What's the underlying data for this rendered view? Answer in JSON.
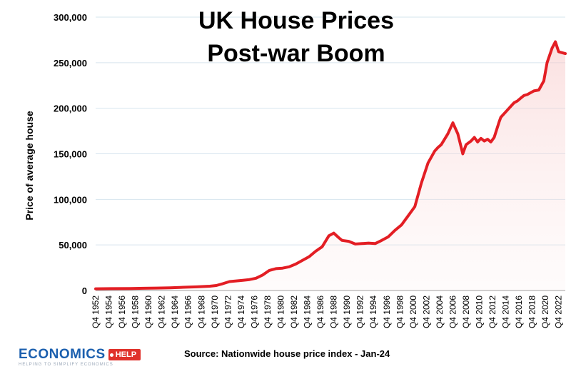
{
  "chart_data": {
    "type": "line",
    "title_line1": "UK House Prices",
    "title_line2": "Post-war Boom",
    "ylabel": "Price of average house",
    "ylim": [
      0,
      300000
    ],
    "yticks": [
      "0",
      "50,000",
      "100,000",
      "150,000",
      "200,000",
      "250,000",
      "300,000"
    ],
    "xticks": [
      "Q4 1952",
      "Q4 1954",
      "Q4 1956",
      "Q4 1958",
      "Q4 1960",
      "Q4 1962",
      "Q4 1964",
      "Q4 1966",
      "Q4 1968",
      "Q4 1970",
      "Q4 1972",
      "Q4 1974",
      "Q4 1976",
      "Q4 1978",
      "Q4 1980",
      "Q4 1982",
      "Q4 1984",
      "Q4 1986",
      "Q4 1988",
      "Q4 1990",
      "Q4 1992",
      "Q4 1994",
      "Q4 1996",
      "Q4 1998",
      "Q4 2000",
      "Q4 2002",
      "Q4 2004",
      "Q4 2006",
      "Q4 2008",
      "Q4 2010",
      "Q4 2012",
      "Q4 2014",
      "Q4 2016",
      "Q4 2018",
      "Q4 2020",
      "Q4 2022"
    ],
    "series": [
      {
        "name": "",
        "color": "#e31e24",
        "x": [
          1952.75,
          1955,
          1958,
          1960,
          1962,
          1964,
          1966,
          1968,
          1970,
          1971,
          1972,
          1973,
          1974,
          1975,
          1976,
          1977,
          1978,
          1979,
          1980,
          1981,
          1982,
          1983,
          1984,
          1985,
          1986,
          1987,
          1988,
          1988.75,
          1989.5,
          1990,
          1991,
          1992,
          1993,
          1994,
          1995,
          1996,
          1997,
          1998,
          1999,
          2000,
          2001,
          2002,
          2003,
          2004,
          2004.5,
          2005,
          2006,
          2006.75,
          2007.5,
          2008.25,
          2008.75,
          2009.5,
          2010,
          2010.5,
          2011,
          2011.5,
          2012,
          2012.5,
          2013,
          2013.75,
          2014,
          2015,
          2016,
          2016.5,
          2017,
          2017.5,
          2018,
          2019,
          2019.75,
          2020.5,
          2021,
          2021.75,
          2022.25,
          2022.75,
          2023.25,
          2023.75
        ],
        "values": [
          1900,
          2000,
          2100,
          2400,
          2700,
          3000,
          3500,
          4000,
          4700,
          5500,
          7500,
          9800,
          10500,
          11200,
          12000,
          13500,
          17000,
          22000,
          24000,
          24500,
          26000,
          29000,
          33000,
          37000,
          43000,
          48000,
          60000,
          63000,
          58000,
          55000,
          54000,
          51000,
          51500,
          52000,
          51500,
          55000,
          59000,
          66000,
          72000,
          82000,
          92000,
          118000,
          140000,
          153000,
          157000,
          160000,
          172000,
          184000,
          172000,
          150000,
          160000,
          164000,
          168000,
          163000,
          167000,
          164000,
          166000,
          163000,
          168000,
          185000,
          190000,
          198000,
          206000,
          208000,
          211000,
          214000,
          215000,
          219000,
          220000,
          230000,
          250000,
          266000,
          273000,
          262000,
          261000,
          260000
        ]
      }
    ]
  },
  "footer": {
    "source": "Source: Nationwide house price index - Jan-24",
    "logo_main": "ECONOMICS",
    "logo_badge": "HELP",
    "logo_tagline": "HELPING TO SIMPLIFY ECONOMICS"
  }
}
